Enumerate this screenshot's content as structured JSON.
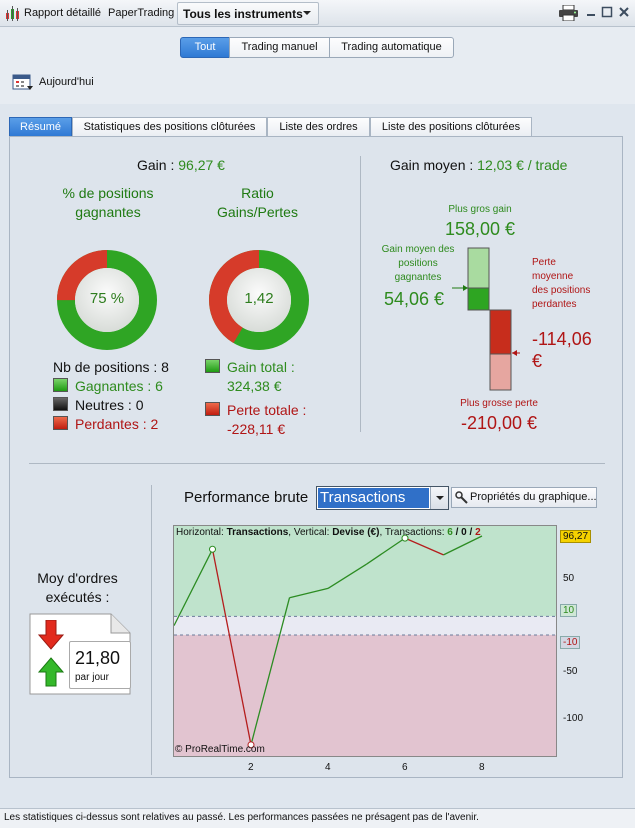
{
  "toolbar": {
    "report_label": "Rapport détaillé",
    "account_label": "PaperTrading",
    "instruments_label": "Tous les instruments",
    "icons": [
      "report-icon",
      "printer-icon",
      "minimize-icon",
      "maximize-icon",
      "close-icon"
    ]
  },
  "filters": {
    "segments": [
      "Tout",
      "Trading manuel",
      "Trading automatique"
    ],
    "active_segment": "Tout",
    "date_label": "Aujourd'hui"
  },
  "tabs": [
    "Résumé",
    "Statistiques des positions clôturées",
    "Liste des ordres",
    "Liste des positions clôturées"
  ],
  "active_tab": "Résumé",
  "summary": {
    "gain_label": "Gain",
    "gain_sep": " : ",
    "gain_value": "96,27 €",
    "win_pct_title": "% de positions gagnantes",
    "win_pct_value": "75 %",
    "win_pct_fraction": 0.75,
    "ratio_title": "Ratio Gains/Pertes",
    "ratio_value": "1,42",
    "ratio_fraction": 0.586,
    "nb_positions": "Nb de positions : 8",
    "winners": "Gagnantes : 6",
    "neutral": "Neutres : 0",
    "losers": "Perdantes : 2",
    "gain_total_label": "Gain total :",
    "gain_total_value": "324,38 €",
    "loss_total_label": "Perte totale :",
    "loss_total_value": "-228,11 €"
  },
  "avg_gain": {
    "label": "Gain moyen",
    "sep": " : ",
    "value": "12,03 € / trade",
    "max_gain_label": "Plus gros gain",
    "max_gain_value": "158,00 €",
    "avg_win_label": "Gain moyen des positions gagnantes",
    "avg_win_value": "54,06 €",
    "avg_loss_label": "Perte moyenne des positions perdantes",
    "avg_loss_value": "-114,06 €",
    "max_loss_label": "Plus grosse perte",
    "max_loss_value": "-210,00 €"
  },
  "orders": {
    "title": "Moy d'ordres exécutés :",
    "value": "21,80",
    "unit": "par jour"
  },
  "performance": {
    "title": "Performance brute",
    "select_value": "Transactions",
    "props_button": "Propriétés du graphique...",
    "header_h_label": "Horizontal: ",
    "header_h_value": "Transactions",
    "header_v_label": ", Vertical: ",
    "header_v_value": "Devise (€)",
    "header_t_label": ", Transactions: ",
    "header_t_win": "6",
    "header_t_sep1": " / ",
    "header_t_neutral": "0",
    "header_t_sep2": " / ",
    "header_t_loss": "2",
    "copyright": "© ProRealTime.com"
  },
  "chart_data": {
    "type": "line",
    "x": [
      0,
      1,
      2,
      3,
      4,
      5,
      6,
      7,
      8
    ],
    "y": [
      0,
      82,
      -128,
      30,
      40,
      66,
      94,
      76,
      96.27
    ],
    "segment_colors": [
      "green",
      "red",
      "green",
      "green",
      "green",
      "green",
      "red",
      "green"
    ],
    "xticks": [
      "2",
      "4",
      "6",
      "8"
    ],
    "yticks": [
      "50",
      "-50",
      "-100"
    ],
    "band_labels": [
      "10",
      "-10"
    ],
    "last_value_label": "96,27",
    "ylim": [
      -140,
      107
    ],
    "xlim": [
      0,
      10
    ]
  },
  "footer": "Les statistiques ci-dessus sont relatives au passé. Les performances passées ne présagent pas de l'avenir."
}
